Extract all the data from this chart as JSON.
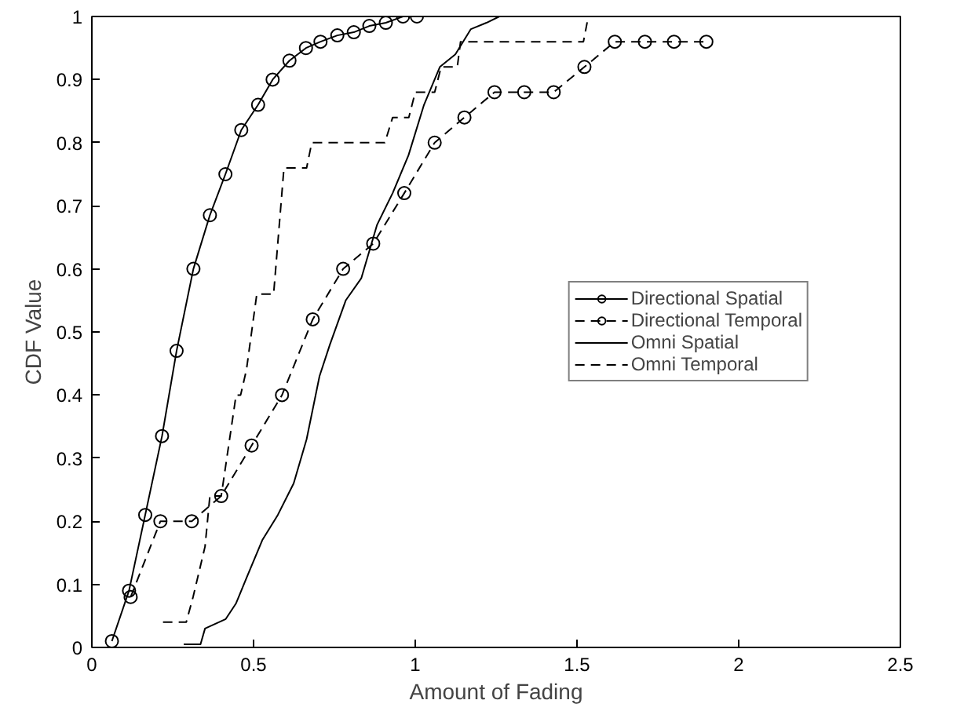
{
  "chart_data": {
    "type": "line",
    "xlabel": "Amount of Fading",
    "ylabel": "CDF Value",
    "xlim": [
      0,
      2.5
    ],
    "ylim": [
      0,
      1
    ],
    "xticks": [
      0,
      0.5,
      1,
      1.5,
      2,
      2.5
    ],
    "yticks": [
      0,
      0.1,
      0.2,
      0.3,
      0.4,
      0.5,
      0.6,
      0.7,
      0.8,
      0.9,
      1
    ],
    "grid": false,
    "legend": "right",
    "series": [
      {
        "name": "Directional Spatial",
        "color": "#000000",
        "marker": "circle",
        "line_style": "solid",
        "x": [
          0.062,
          0.115,
          0.165,
          0.217,
          0.262,
          0.314,
          0.365,
          0.413,
          0.462,
          0.514,
          0.559,
          0.611,
          0.662,
          0.707,
          0.759,
          0.81,
          0.858,
          0.909,
          0.962,
          1.005
        ],
        "values": [
          0.01,
          0.09,
          0.21,
          0.335,
          0.47,
          0.6,
          0.685,
          0.75,
          0.82,
          0.86,
          0.9,
          0.93,
          0.95,
          0.96,
          0.97,
          0.975,
          0.985,
          0.99,
          1.0,
          1.0
        ]
      },
      {
        "name": "Directional Temporal",
        "color": "#000000",
        "marker": "circle",
        "line_style": "dashed",
        "x": [
          0.12,
          0.212,
          0.309,
          0.4,
          0.494,
          0.588,
          0.683,
          0.777,
          0.87,
          0.966,
          1.06,
          1.152,
          1.245,
          1.337,
          1.428,
          1.523,
          1.617,
          1.71,
          1.8,
          1.9
        ],
        "values": [
          0.08,
          0.2,
          0.2,
          0.24,
          0.32,
          0.4,
          0.52,
          0.6,
          0.64,
          0.72,
          0.8,
          0.84,
          0.88,
          0.88,
          0.88,
          0.92,
          0.96,
          0.96,
          0.96,
          0.96
        ]
      },
      {
        "name": "Omni Spatial",
        "color": "#000000",
        "marker": "none",
        "line_style": "solid",
        "x": [
          0.284,
          0.336,
          0.35,
          0.414,
          0.446,
          0.478,
          0.527,
          0.575,
          0.624,
          0.664,
          0.704,
          0.736,
          0.785,
          0.833,
          0.882,
          0.93,
          0.979,
          1.027,
          1.076,
          1.124,
          1.172,
          1.22,
          1.26,
          2.5
        ],
        "values": [
          0.005,
          0.005,
          0.03,
          0.045,
          0.07,
          0.11,
          0.17,
          0.21,
          0.26,
          0.33,
          0.43,
          0.48,
          0.55,
          0.585,
          0.67,
          0.72,
          0.78,
          0.86,
          0.92,
          0.94,
          0.98,
          0.99,
          1.0,
          1.0
        ]
      },
      {
        "name": "Omni Temporal",
        "color": "#000000",
        "marker": "none",
        "line_style": "dashed",
        "x": [
          0.22,
          0.292,
          0.313,
          0.35,
          0.365,
          0.4,
          0.446,
          0.46,
          0.478,
          0.51,
          0.562,
          0.594,
          0.664,
          0.68,
          0.906,
          0.93,
          0.98,
          1.0,
          1.06,
          1.08,
          1.13,
          1.14,
          1.52,
          1.535,
          2.5
        ],
        "values": [
          0.04,
          0.04,
          0.08,
          0.16,
          0.24,
          0.24,
          0.4,
          0.4,
          0.44,
          0.56,
          0.56,
          0.76,
          0.76,
          0.8,
          0.8,
          0.84,
          0.84,
          0.88,
          0.88,
          0.92,
          0.92,
          0.96,
          0.96,
          1.0,
          1.0
        ]
      }
    ]
  }
}
